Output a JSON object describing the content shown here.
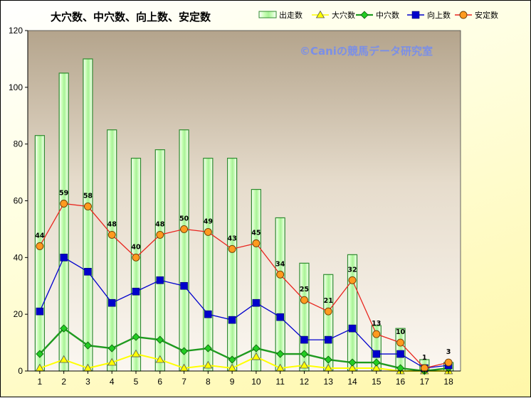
{
  "chart_data": {
    "type": "bar",
    "title": "大穴数、中穴数、向上数、安定数",
    "watermark": "©Caniの競馬データ研究室",
    "categories": [
      "1",
      "2",
      "3",
      "4",
      "5",
      "6",
      "7",
      "8",
      "9",
      "10",
      "11",
      "12",
      "13",
      "14",
      "15",
      "16",
      "17",
      "18"
    ],
    "ylim": [
      0,
      120
    ],
    "yticks": [
      "0",
      "20",
      "40",
      "60",
      "80",
      "100",
      "120"
    ],
    "legend_position": "top-right",
    "series": [
      {
        "name": "出走数",
        "kind": "bar",
        "color": "#2e8b2e",
        "fill": "#ccffcc",
        "values": [
          83,
          105,
          110,
          85,
          75,
          78,
          85,
          75,
          75,
          64,
          54,
          38,
          34,
          41,
          16,
          15,
          4,
          3
        ]
      },
      {
        "name": "大穴数",
        "kind": "line",
        "marker": "triangle",
        "color": "#ffff00",
        "values": [
          1,
          4,
          1,
          3,
          6,
          4,
          1,
          2,
          1,
          5,
          1,
          2,
          1,
          1,
          1,
          0,
          0,
          0
        ]
      },
      {
        "name": "中穴数",
        "kind": "line",
        "marker": "diamond",
        "color": "#1f9a1f",
        "values": [
          6,
          15,
          9,
          8,
          12,
          11,
          7,
          8,
          4,
          8,
          6,
          6,
          4,
          3,
          3,
          1,
          0,
          1
        ]
      },
      {
        "name": "向上数",
        "kind": "line",
        "marker": "square",
        "color": "#0000cc",
        "values": [
          21,
          40,
          35,
          24,
          28,
          32,
          30,
          20,
          18,
          24,
          19,
          11,
          11,
          15,
          6,
          6,
          1,
          2
        ]
      },
      {
        "name": "安定数",
        "kind": "line",
        "marker": "circle",
        "color": "#e8251e",
        "marker_fill": "#ff9a1f",
        "values": [
          44,
          59,
          58,
          48,
          40,
          48,
          50,
          49,
          43,
          45,
          34,
          25,
          21,
          32,
          13,
          10,
          1,
          3
        ],
        "labels": [
          "44",
          "59",
          "58",
          "48",
          "40",
          "48",
          "50",
          "49",
          "43",
          "45",
          "34",
          "25",
          "21",
          "32",
          "13",
          "10",
          "1",
          "3"
        ]
      }
    ]
  }
}
